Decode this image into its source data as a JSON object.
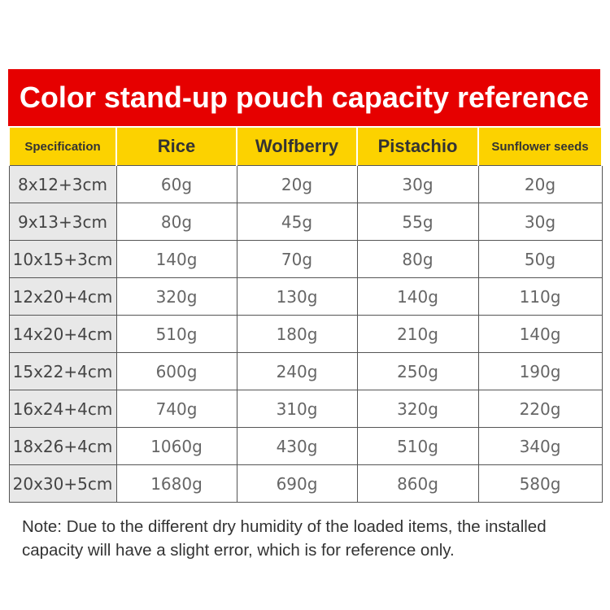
{
  "title": "Color stand-up pouch capacity reference",
  "table": {
    "headers": [
      "Specification",
      "Rice",
      "Wolfberry",
      "Pistachio",
      "Sunflower seeds"
    ],
    "rows": [
      [
        "8x12+3cm",
        "60g",
        "20g",
        "30g",
        "20g"
      ],
      [
        "9x13+3cm",
        "80g",
        "45g",
        "55g",
        "30g"
      ],
      [
        "10x15+3cm",
        "140g",
        "70g",
        "80g",
        "50g"
      ],
      [
        "12x20+4cm",
        "320g",
        "130g",
        "140g",
        "110g"
      ],
      [
        "14x20+4cm",
        "510g",
        "180g",
        "210g",
        "140g"
      ],
      [
        "15x22+4cm",
        "600g",
        "240g",
        "250g",
        "190g"
      ],
      [
        "16x24+4cm",
        "740g",
        "310g",
        "320g",
        "220g"
      ],
      [
        "18x26+4cm",
        "1060g",
        "430g",
        "510g",
        "340g"
      ],
      [
        "20x30+5cm",
        "1680g",
        "690g",
        "860g",
        "580g"
      ]
    ]
  },
  "note": "Note: Due to the different dry humidity of the loaded items, the installed capacity will have a slight error, which is for reference only.",
  "colors": {
    "banner": "#e60000",
    "header": "#fcd200",
    "spec_column": "#e8e8e8"
  }
}
